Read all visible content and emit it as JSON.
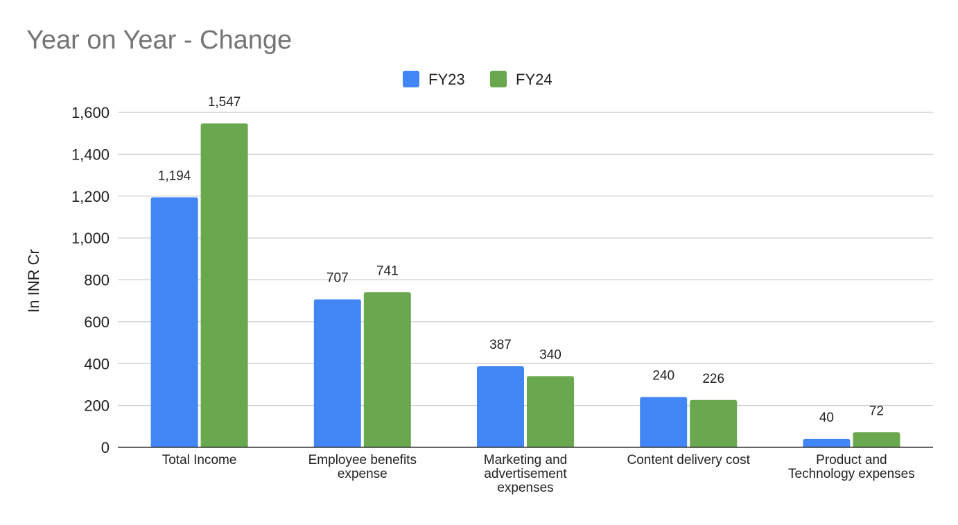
{
  "chart_data": {
    "type": "bar",
    "title": "Year on Year - Change",
    "xlabel": "",
    "ylabel": "In INR Cr",
    "ylim": [
      0,
      1600
    ],
    "yticks": [
      0,
      200,
      400,
      600,
      800,
      1000,
      1200,
      1400,
      1600
    ],
    "ytick_labels": [
      "0",
      "200",
      "400",
      "600",
      "800",
      "1,000",
      "1,200",
      "1,400",
      "1,600"
    ],
    "grid": true,
    "legend_position": "top-center",
    "categories": [
      "Total Income",
      "Employee benefits expense",
      "Marketing and advertisement expenses",
      "Content delivery cost",
      "Product and Technology expenses"
    ],
    "category_label_lines": [
      [
        "Total Income"
      ],
      [
        "Employee benefits",
        "expense"
      ],
      [
        "Marketing and",
        "advertisement",
        "expenses"
      ],
      [
        "Content delivery cost"
      ],
      [
        "Product and",
        "Technology expenses"
      ]
    ],
    "series": [
      {
        "name": "FY23",
        "color": "#4285f4",
        "values": [
          1194,
          707,
          387,
          240,
          40
        ],
        "value_labels": [
          "1,194",
          "707",
          "387",
          "240",
          "40"
        ]
      },
      {
        "name": "FY24",
        "color": "#6aa84f",
        "values": [
          1547,
          741,
          340,
          226,
          72
        ],
        "value_labels": [
          "1,547",
          "741",
          "340",
          "226",
          "72"
        ]
      }
    ]
  }
}
